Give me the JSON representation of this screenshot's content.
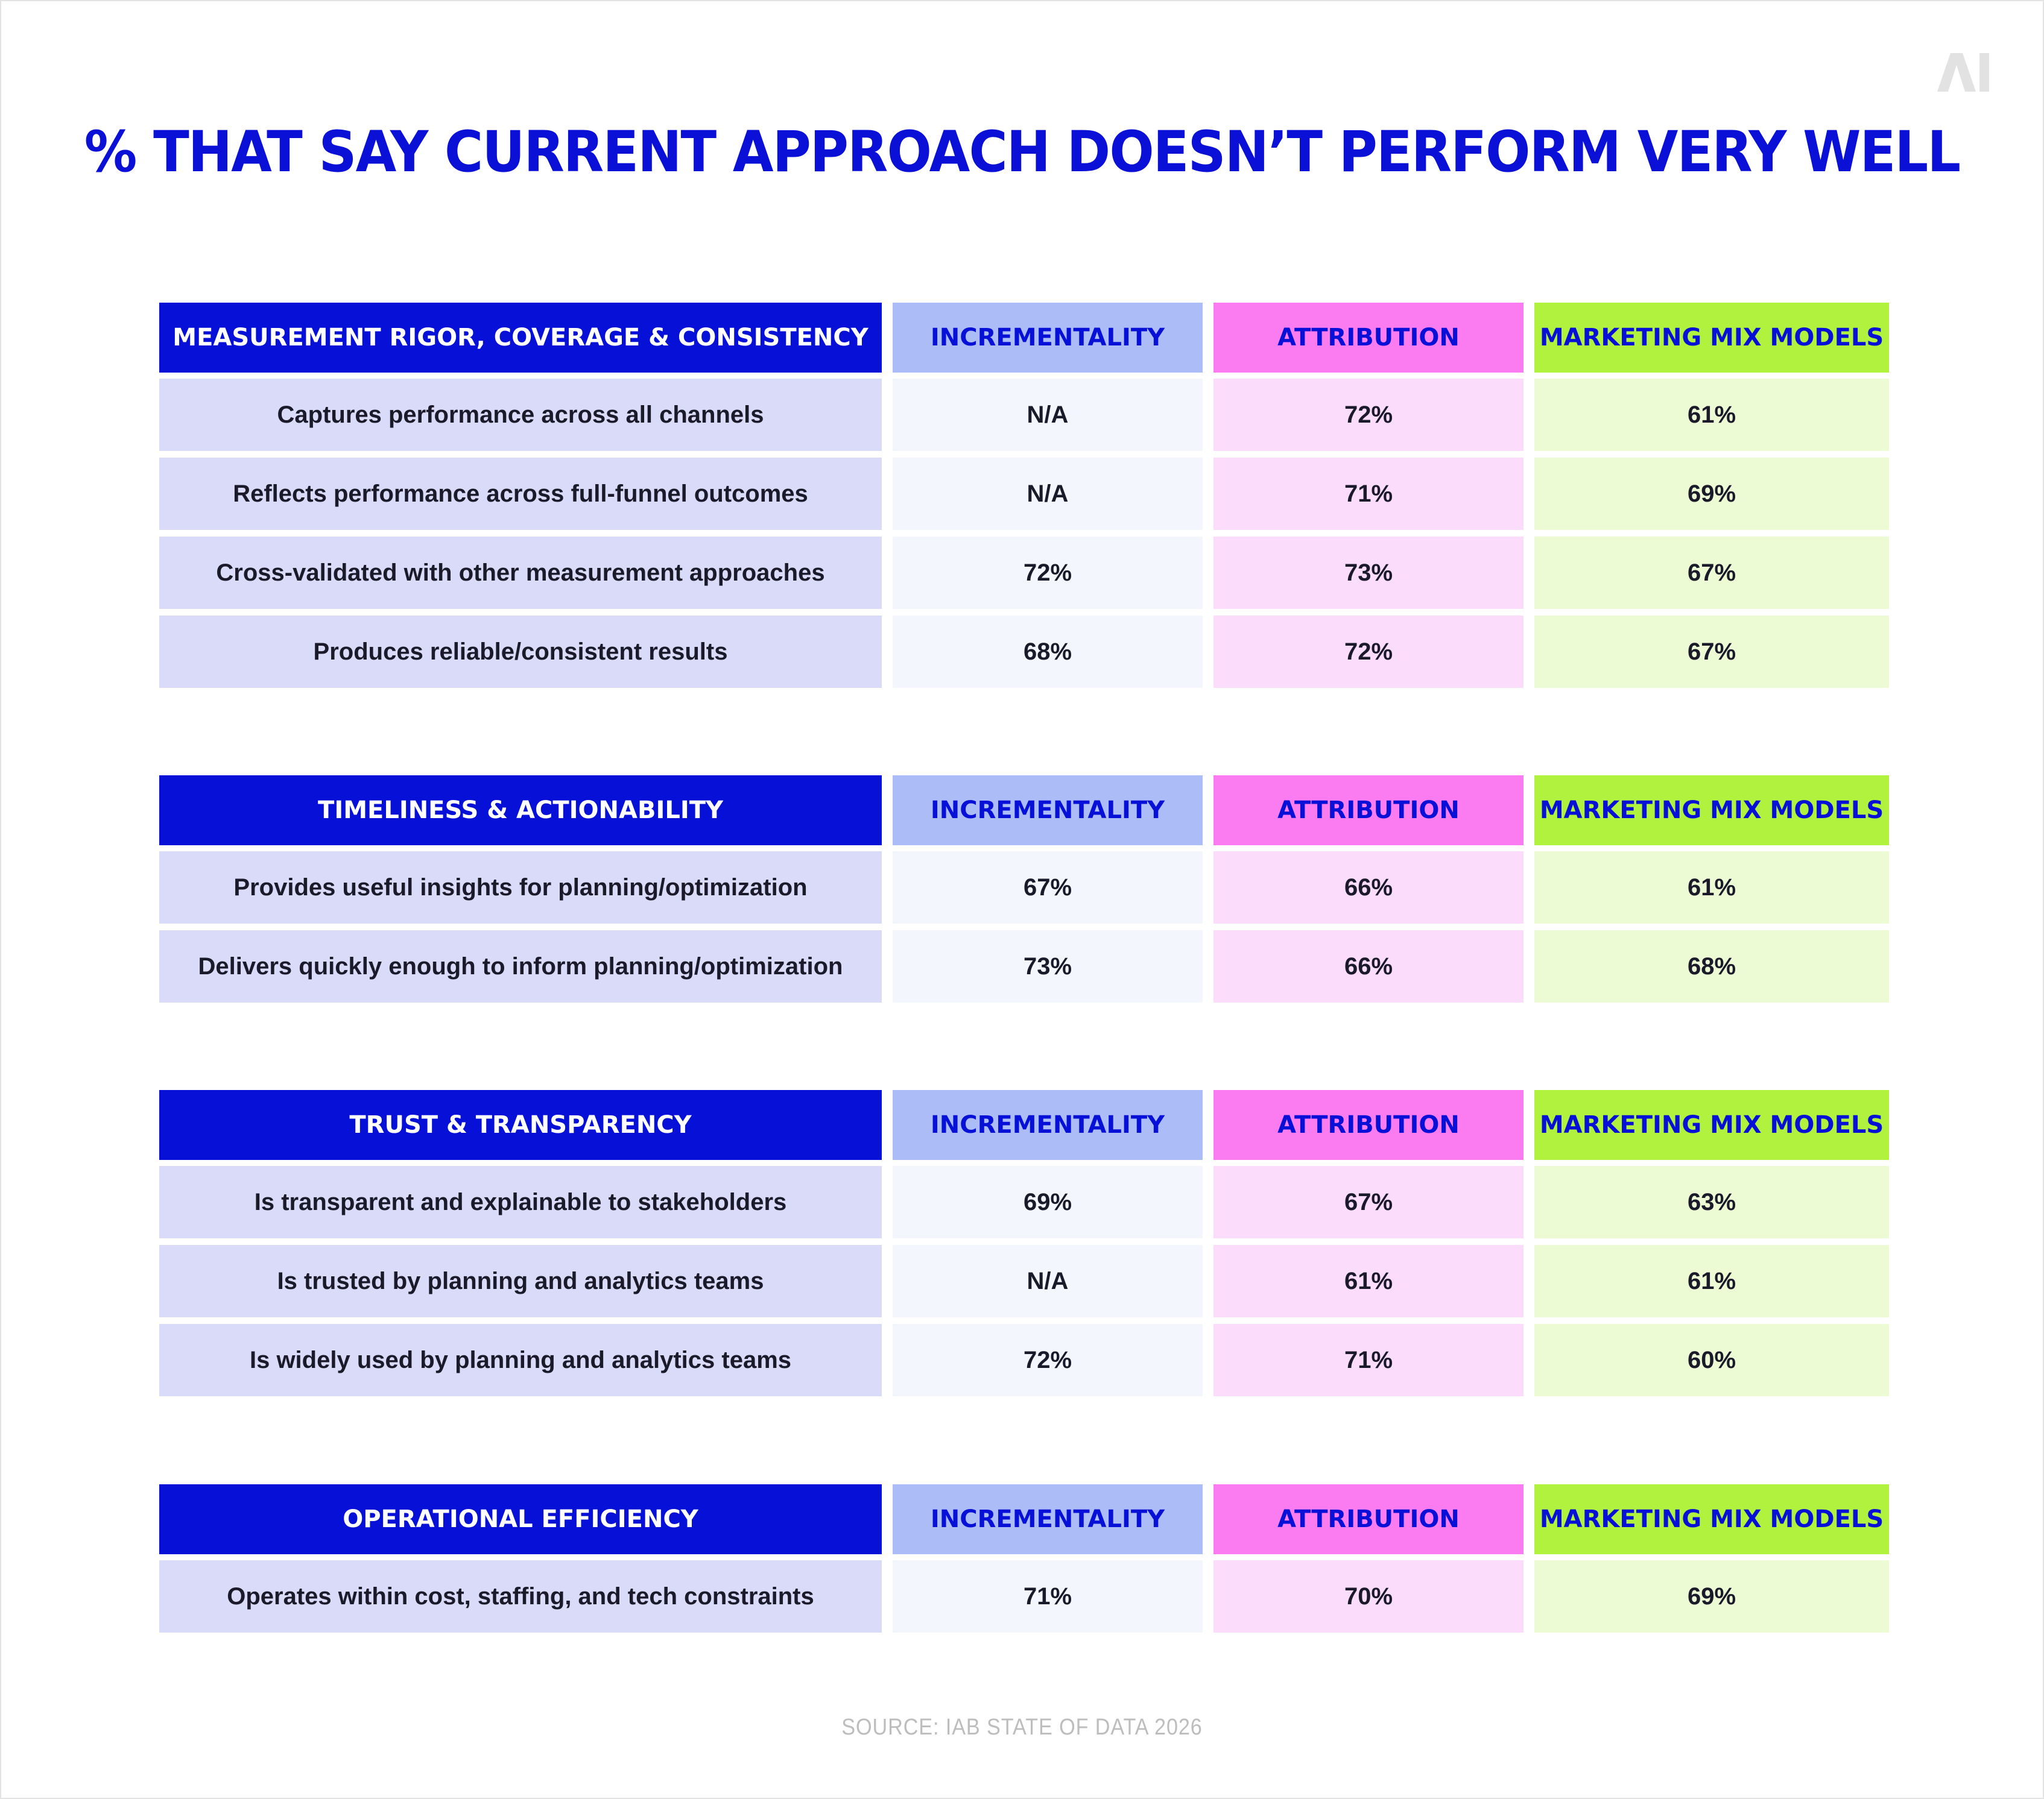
{
  "brand": {
    "logo_text": "AI",
    "logo_color": "#e2e2e2"
  },
  "title": "% THAT SAY CURRENT APPROACH DOESN’T PERFORM VERY WELL",
  "colors": {
    "title": "#0a10d6",
    "category_header": "#0710d6",
    "incrementality_header": "#abbcf6",
    "attribution_header": "#fb7cf0",
    "mmm_header": "#b1f23e"
  },
  "chart_data": {
    "type": "table",
    "columns": [
      "INCREMENTALITY",
      "ATTRIBUTION",
      "MARKETING MIX MODELS"
    ],
    "groups": [
      {
        "header": "MEASUREMENT RIGOR, COVERAGE & CONSISTENCY",
        "rows": [
          {
            "label": "Captures performance across all channels",
            "values": [
              "N/A",
              "72%",
              "61%"
            ]
          },
          {
            "label": "Reflects performance across full-funnel outcomes",
            "values": [
              "N/A",
              "71%",
              "69%"
            ]
          },
          {
            "label": "Cross-validated with other measurement approaches",
            "values": [
              "72%",
              "73%",
              "67%"
            ]
          },
          {
            "label": "Produces reliable/consistent results",
            "values": [
              "68%",
              "72%",
              "67%"
            ]
          }
        ]
      },
      {
        "header": "TIMELINESS & ACTIONABILITY",
        "rows": [
          {
            "label": "Provides useful insights for planning/optimization",
            "values": [
              "67%",
              "66%",
              "61%"
            ]
          },
          {
            "label": "Delivers quickly enough to inform planning/optimization",
            "values": [
              "73%",
              "66%",
              "68%"
            ]
          }
        ]
      },
      {
        "header": "TRUST & TRANSPARENCY",
        "rows": [
          {
            "label": "Is transparent and explainable to stakeholders",
            "values": [
              "69%",
              "67%",
              "63%"
            ]
          },
          {
            "label": "Is trusted by planning and analytics teams",
            "values": [
              "N/A",
              "61%",
              "61%"
            ]
          },
          {
            "label": "Is widely used by planning and analytics teams",
            "values": [
              "72%",
              "71%",
              "60%"
            ]
          }
        ]
      },
      {
        "header": "OPERATIONAL EFFICIENCY",
        "rows": [
          {
            "label": "Operates within cost, staffing, and tech constraints",
            "values": [
              "71%",
              "70%",
              "69%"
            ]
          }
        ]
      }
    ]
  },
  "source": "SOURCE: IAB STATE OF DATA 2026"
}
